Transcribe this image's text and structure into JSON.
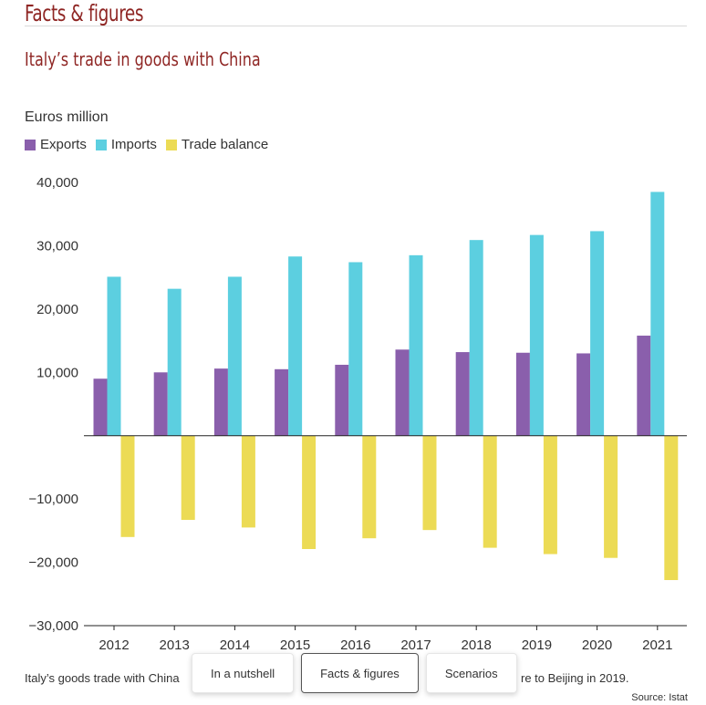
{
  "header": {
    "section_title": "Facts & figures"
  },
  "chart_data": {
    "type": "bar",
    "title": "Italy’s trade in goods with China",
    "ylabel": "Euros million",
    "categories": [
      "2012",
      "2013",
      "2014",
      "2015",
      "2016",
      "2017",
      "2018",
      "2019",
      "2020",
      "2021"
    ],
    "series": [
      {
        "name": "Exports",
        "color": "#8a5fac",
        "values": [
          9000,
          10000,
          10600,
          10500,
          11200,
          13600,
          13200,
          13100,
          13000,
          15800
        ]
      },
      {
        "name": "Imports",
        "color": "#5ccfe0",
        "values": [
          25100,
          23200,
          25100,
          28300,
          27400,
          28500,
          30900,
          31700,
          32300,
          38500
        ]
      },
      {
        "name": "Trade balance",
        "color": "#ecdb55",
        "values": [
          -16000,
          -13300,
          -14500,
          -17900,
          -16200,
          -14900,
          -17700,
          -18700,
          -19300,
          -22800
        ]
      }
    ],
    "ylim": [
      -30000,
      40000
    ],
    "yticks": [
      40000,
      30000,
      20000,
      10000,
      0,
      -10000,
      -20000,
      -30000
    ],
    "ytick_labels": [
      "40,000",
      "30,000",
      "20,000",
      "10,000",
      "",
      "−10,000",
      "−20,000",
      "−30,000"
    ],
    "legend_position": "top-left",
    "grid": false
  },
  "caption": "Italy’s goods trade with China",
  "caption_tail": "re to Beijing in 2019.",
  "source": "Source: Istat",
  "nav": {
    "buttons": [
      {
        "label": "In a nutshell",
        "active": false
      },
      {
        "label": "Facts & figures",
        "active": true
      },
      {
        "label": "Scenarios",
        "active": false
      }
    ]
  }
}
